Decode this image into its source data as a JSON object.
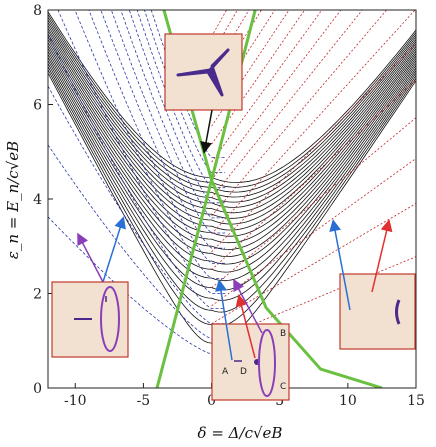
{
  "chart_data": {
    "type": "line",
    "title": "",
    "xlabel": "δ = Δ/c√eB",
    "ylabel": "ε_n = E_n/c√eB",
    "xlim": [
      -12,
      15
    ],
    "ylim": [
      0,
      8
    ],
    "x_ticks": [
      "-10",
      "-5",
      "0",
      "5",
      "10",
      "15"
    ],
    "y_ticks": [
      "0",
      "2",
      "4",
      "6",
      "8"
    ],
    "grid": false,
    "colors": {
      "black_levels": "#111111",
      "blue_levels": "#2b3aa8",
      "red_levels": "#c0282c",
      "green_curves": "#6ac040",
      "inset_fill": "#f2e1d1",
      "inset_border": "#c0392b",
      "shape": "#4a2a8c",
      "arrow_blue": "#2a6fd6",
      "arrow_purple": "#8a3fb8",
      "arrow_red": "#e0302f",
      "arrow_black": "#111111"
    },
    "series": [
      {
        "name": "",
        "note_hidden": true,
        "levels": 22
      }
    ],
    "point_labels": [
      "A",
      "D",
      "B",
      "C"
    ]
  }
}
